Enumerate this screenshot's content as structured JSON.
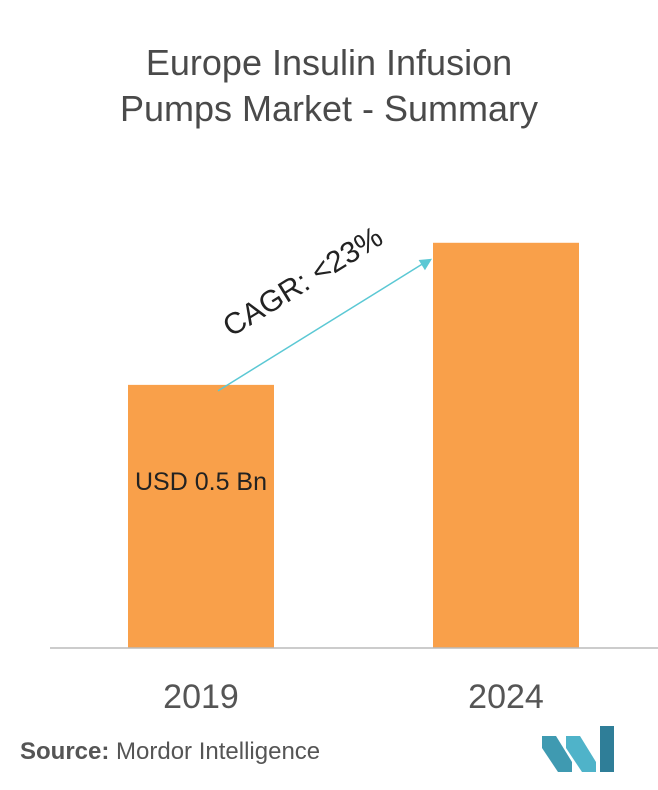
{
  "title_lines": [
    "Europe Insulin Infusion",
    "Pumps Market - Summary"
  ],
  "chart_data": {
    "type": "bar",
    "categories": [
      "2019",
      "2024"
    ],
    "values": [
      0.5,
      0.77
    ],
    "data_labels": [
      "USD 0.5 Bn",
      ""
    ],
    "annotation": "CAGR: <23%",
    "bar_color": "#f9a04a",
    "arrow_color": "#5bc8d4",
    "axis_color": "#bbbbbb",
    "ylim": [
      0,
      0.8
    ],
    "grid": false,
    "xlabel": "",
    "ylabel": ""
  },
  "source": {
    "label": "Source:",
    "text": " Mordor Intelligence"
  },
  "logo": {
    "name": "mordor-intelligence-logo",
    "color": "#3f9ab1"
  }
}
